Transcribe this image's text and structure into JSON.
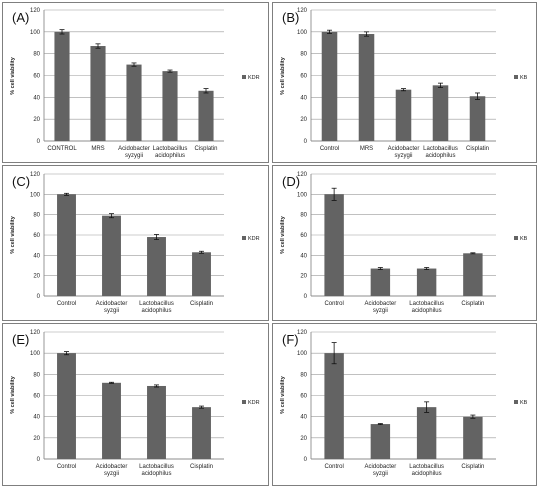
{
  "colors": {
    "bar": "#636363",
    "grid": "#9a9a9a",
    "axis": "#8c8c8c",
    "text": "#222222",
    "border": "#7f7f7f"
  },
  "chart_data": [
    {
      "label": "(A)",
      "type": "bar",
      "ylabel": "% cell viability",
      "ylim": [
        0,
        120
      ],
      "yticks": [
        "0",
        "20",
        "40",
        "60",
        "80",
        "100",
        "120"
      ],
      "categories": [
        [
          "CONTROL"
        ],
        [
          "MRS"
        ],
        [
          "Acidobacter",
          "syzygii"
        ],
        [
          "Lactobacillus",
          "acidophilus"
        ],
        [
          "Cisplatin"
        ]
      ],
      "series": [
        {
          "name": "KDR",
          "values": [
            100,
            87,
            70,
            64,
            46
          ],
          "errors": [
            2,
            2,
            1.5,
            1,
            2
          ]
        }
      ],
      "legend": "right",
      "grid": true
    },
    {
      "label": "(B)",
      "type": "bar",
      "ylabel": "% cell viability",
      "ylim": [
        0,
        120
      ],
      "yticks": [
        "0",
        "20",
        "40",
        "60",
        "80",
        "100",
        "120"
      ],
      "categories": [
        [
          "Control"
        ],
        [
          "MRS"
        ],
        [
          "Acidobacter",
          "syzygii"
        ],
        [
          "Lactobacillus",
          "acidophilus"
        ],
        [
          "Cisplatin"
        ]
      ],
      "series": [
        {
          "name": "KB",
          "values": [
            100,
            98,
            47,
            51,
            41
          ],
          "errors": [
            1.5,
            2,
            1,
            2,
            3
          ]
        }
      ],
      "legend": "right",
      "grid": true
    },
    {
      "label": "(C)",
      "type": "bar",
      "ylabel": "% cell viability",
      "ylim": [
        0,
        120
      ],
      "yticks": [
        "0",
        "20",
        "40",
        "60",
        "80",
        "100",
        "120"
      ],
      "categories": [
        [
          "Control"
        ],
        [
          "Acidobacter",
          "syzgii"
        ],
        [
          "Lactobacillus",
          "acidophilus"
        ],
        [
          "Cisplatin"
        ]
      ],
      "series": [
        {
          "name": "KDR",
          "values": [
            100,
            79,
            58,
            43
          ],
          "errors": [
            1,
            2,
            2.5,
            1
          ]
        }
      ],
      "legend": "right",
      "grid": true
    },
    {
      "label": "(D)",
      "type": "bar",
      "ylabel": "% cell viability",
      "ylim": [
        0,
        120
      ],
      "yticks": [
        "0",
        "20",
        "40",
        "60",
        "80",
        "100",
        "120"
      ],
      "categories": [
        [
          "Control"
        ],
        [
          "Acidobacter",
          "syzgii"
        ],
        [
          "Lactobacillus",
          "acidophilus"
        ],
        [
          "Cisplatin"
        ]
      ],
      "series": [
        {
          "name": "KB",
          "values": [
            100,
            27,
            27,
            42
          ],
          "errors": [
            6,
            1,
            1,
            0.5
          ]
        }
      ],
      "legend": "right",
      "grid": true
    },
    {
      "label": "(E)",
      "type": "bar",
      "ylabel": "% cell viability",
      "ylim": [
        0,
        120
      ],
      "yticks": [
        "0",
        "20",
        "40",
        "60",
        "80",
        "100",
        "120"
      ],
      "categories": [
        [
          "Control"
        ],
        [
          "Acidobacter",
          "syzgii"
        ],
        [
          "Lactobacillus",
          "acidophilus"
        ],
        [
          "Cisplatin"
        ]
      ],
      "series": [
        {
          "name": "KDR",
          "values": [
            100,
            72,
            69,
            49
          ],
          "errors": [
            1.5,
            0.5,
            1,
            1
          ]
        }
      ],
      "legend": "right",
      "grid": true
    },
    {
      "label": "(F)",
      "type": "bar",
      "ylabel": "% cell viability",
      "ylim": [
        0,
        120
      ],
      "yticks": [
        "0",
        "20",
        "40",
        "60",
        "80",
        "100",
        "120"
      ],
      "categories": [
        [
          "Control"
        ],
        [
          "Acidobacter",
          "syzgii"
        ],
        [
          "Lactobacillus",
          "acidophilus"
        ],
        [
          "Cisplatin"
        ]
      ],
      "series": [
        {
          "name": "KB",
          "values": [
            100,
            33,
            49,
            40
          ],
          "errors": [
            10,
            0.5,
            5,
            1.5
          ]
        }
      ],
      "legend": "right",
      "grid": true
    }
  ]
}
